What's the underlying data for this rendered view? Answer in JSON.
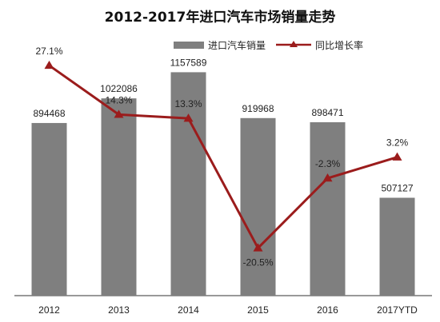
{
  "chart_data": {
    "type": "bar",
    "title": "2012-2017年进口汽车市场销量走势",
    "categories": [
      "2012",
      "2013",
      "2014",
      "2015",
      "2016",
      "2017YTD"
    ],
    "series": [
      {
        "name": "进口汽车销量",
        "type": "bar",
        "axis": "left",
        "color": "#7f7f7f",
        "values": [
          894468,
          1022086,
          1157589,
          919968,
          898471,
          507127
        ]
      },
      {
        "name": "同比增长率",
        "type": "line",
        "axis": "right",
        "color": "#9b1c1c",
        "values": [
          27.1,
          14.3,
          13.3,
          -20.5,
          -2.3,
          3.2
        ]
      }
    ],
    "value_labels": [
      "894468",
      "1022086",
      "1157589",
      "919968",
      "898471",
      "507127"
    ],
    "pct_labels": [
      "27.1%",
      "14.3%",
      "13.3%",
      "-20.5%",
      "-2.3%",
      "3.2%"
    ],
    "ylim": [
      0,
      1300000
    ],
    "y2lim": [
      -30,
      35
    ],
    "grid": false,
    "legend_position": "top"
  }
}
